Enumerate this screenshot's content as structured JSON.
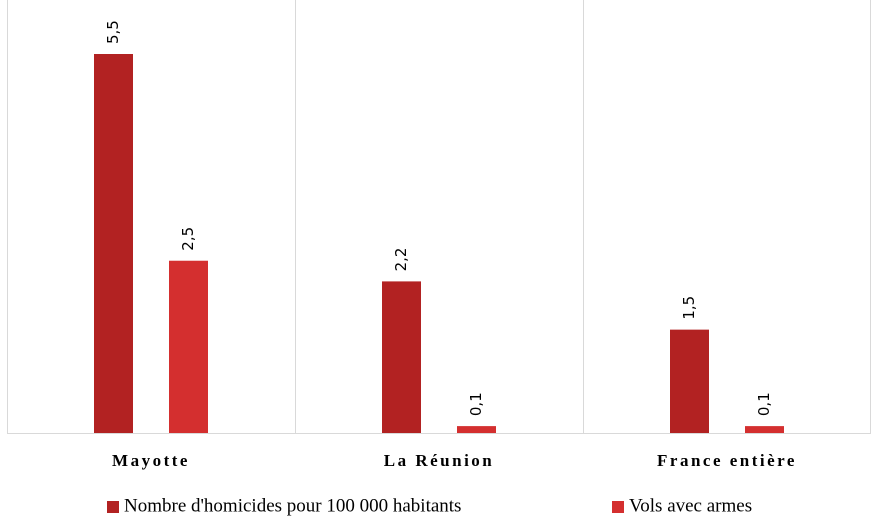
{
  "chart_data": {
    "type": "bar",
    "categories": [
      "Mayotte",
      "La Réunion",
      "France entière"
    ],
    "series": [
      {
        "name": "Nombre d'homicides pour 100 000 habitants",
        "color": "#b22222",
        "values": [
          5.5,
          2.2,
          1.5
        ],
        "value_labels": [
          "5,5",
          "2,2",
          "1,5"
        ]
      },
      {
        "name": "Vols avec armes",
        "color": "#d42f2f",
        "values": [
          2.5,
          0.1,
          0.1
        ],
        "value_labels": [
          "2,5",
          "0,1",
          "0,1"
        ]
      }
    ],
    "ylim": [
      0,
      5.5
    ]
  }
}
